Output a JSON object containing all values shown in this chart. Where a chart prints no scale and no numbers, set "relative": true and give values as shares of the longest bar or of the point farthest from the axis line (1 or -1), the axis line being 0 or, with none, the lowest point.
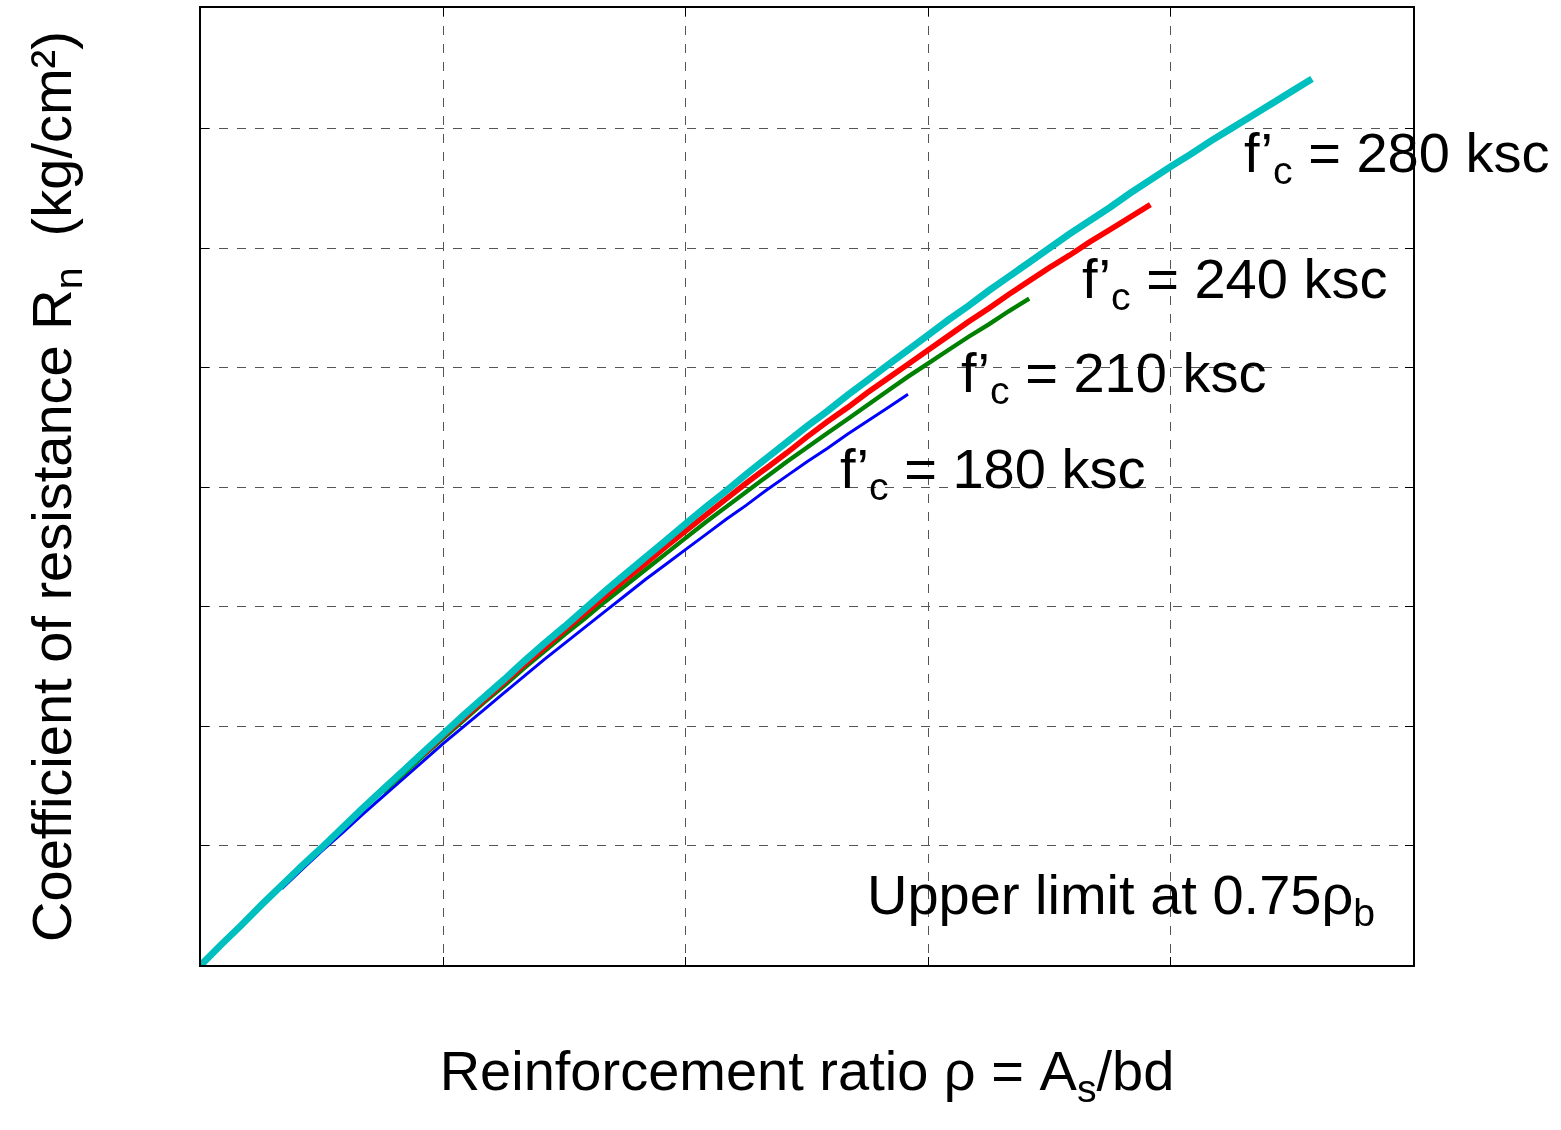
{
  "chart_data": {
    "type": "line",
    "relative": true,
    "grid": true,
    "legend": false,
    "line_style": "solid",
    "marker": "none",
    "xlabel": "Reinforcement ratio ρ = A$_{s}$/bd",
    "ylabel": "Coefficient of resistance R$_{n}$  (kg/cm²)",
    "annotations": [
      "Upper limit at 0.75ρ$_{b}$"
    ],
    "categories": [
      null,
      null,
      null,
      null,
      null,
      null,
      null,
      null,
      null,
      null,
      null,
      null,
      null,
      null,
      null,
      null,
      null,
      null,
      null,
      null,
      null,
      null,
      null,
      null,
      null,
      null,
      null,
      null,
      null,
      null,
      null,
      null,
      null,
      null,
      null,
      null,
      null,
      null,
      null,
      null,
      null,
      null,
      null,
      null,
      null,
      null,
      null,
      null,
      null,
      null,
      null,
      null,
      null,
      null,
      null,
      null,
      null,
      null,
      null,
      null,
      null
    ],
    "series": [
      {
        "name": "f’$_{c}$ = 280 ksc",
        "color": "#00bfbf",
        "values": [
          0,
          0.023,
          0.045,
          0.068,
          0.09,
          0.112,
          0.133,
          0.155,
          0.177,
          0.198,
          0.219,
          0.24,
          0.261,
          0.282,
          0.302,
          0.322,
          0.343,
          0.363,
          0.382,
          0.402,
          0.422,
          0.441,
          0.46,
          0.479,
          0.498,
          0.517,
          0.535,
          0.554,
          0.572,
          0.59,
          0.608,
          0.625,
          0.643,
          0.66,
          0.677,
          0.694,
          0.711,
          0.728,
          0.744,
          0.761,
          0.777,
          0.793,
          0.809,
          0.825,
          0.84,
          0.855,
          0.871,
          0.886,
          0.901,
          0.915,
          0.93,
          0.944,
          0.958,
          0.972,
          0.986,
          1,
          null,
          null,
          null,
          null,
          null
        ]
      },
      {
        "name": "f’$_{c}$ = 240 ksc",
        "color": "#ff0000",
        "values": [
          null,
          null,
          null,
          null,
          null,
          null,
          null,
          null,
          null,
          null,
          null,
          0.238,
          0.259,
          0.279,
          0.299,
          0.319,
          0.339,
          0.358,
          0.378,
          0.397,
          0.416,
          0.435,
          0.453,
          0.472,
          0.49,
          0.508,
          0.526,
          0.544,
          0.561,
          0.578,
          0.596,
          0.613,
          0.629,
          0.646,
          0.662,
          0.678,
          0.694,
          0.71,
          0.726,
          0.741,
          0.757,
          0.772,
          0.787,
          0.801,
          0.816,
          0.83,
          0.844,
          0.858,
          null,
          null,
          null,
          null,
          null,
          null,
          null,
          null,
          null,
          null,
          null,
          null,
          null
        ]
      },
      {
        "name": "f’$_{c}$ = 210 ksc",
        "color": "#008000",
        "values": [
          null,
          null,
          null,
          null,
          null,
          null,
          null,
          null,
          null,
          0.195,
          0.215,
          0.236,
          0.256,
          0.276,
          0.296,
          0.315,
          0.335,
          0.354,
          0.373,
          0.391,
          0.41,
          0.428,
          0.446,
          0.464,
          0.482,
          0.5,
          0.517,
          0.534,
          0.551,
          0.568,
          0.584,
          0.6,
          0.616,
          0.632,
          0.648,
          0.664,
          0.679,
          0.694,
          0.709,
          0.723,
          0.738,
          0.752,
          null,
          null,
          null,
          null,
          null,
          null,
          null,
          null,
          null,
          null,
          null,
          null,
          null,
          null,
          null,
          null,
          null,
          null,
          null
        ]
      },
      {
        "name": "f’$_{c}$ = 180 ksc",
        "color": "#0000ff",
        "values": [
          null,
          null,
          null,
          null,
          0.086,
          0.108,
          0.129,
          0.149,
          0.17,
          0.19,
          0.21,
          0.23,
          0.25,
          0.269,
          0.288,
          0.307,
          0.326,
          0.345,
          0.363,
          0.381,
          0.399,
          0.417,
          0.435,
          0.452,
          0.469,
          0.486,
          0.503,
          0.519,
          0.536,
          0.552,
          0.568,
          0.583,
          0.599,
          0.614,
          0.629,
          0.644,
          null,
          null,
          null,
          null,
          null,
          null,
          null,
          null,
          null,
          null,
          null,
          null,
          null,
          null,
          null,
          null,
          null,
          null,
          null,
          null,
          null,
          null,
          null,
          null,
          null
        ]
      }
    ]
  }
}
